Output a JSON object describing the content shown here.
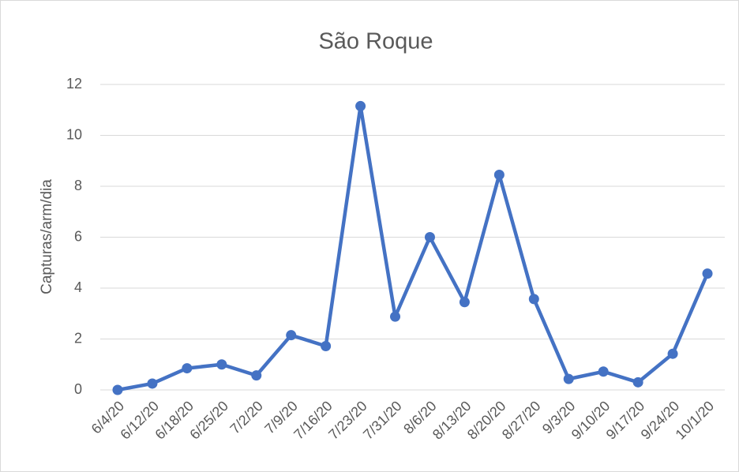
{
  "chart_data": {
    "type": "line",
    "title": "São Roque",
    "y_label": "Capturas/arm/dia",
    "categories": [
      "6/4/20",
      "6/12/20",
      "6/18/20",
      "6/25/20",
      "7/2/20",
      "7/9/20",
      "7/16/20",
      "7/23/20",
      "7/31/20",
      "8/6/20",
      "8/13/20",
      "8/20/20",
      "8/27/20",
      "9/3/20",
      "9/10/20",
      "9/17/20",
      "9/24/20",
      "10/1/20"
    ],
    "series": [
      {
        "name": "São Roque",
        "color": "#4472c4",
        "values": [
          0,
          0.25,
          0.85,
          1.0,
          0.57,
          2.15,
          1.72,
          11.15,
          2.88,
          6.0,
          3.45,
          8.45,
          3.57,
          0.43,
          0.72,
          0.3,
          1.42,
          4.57
        ]
      }
    ],
    "ylim": [
      0,
      12
    ],
    "yticks": [
      0,
      2,
      4,
      6,
      8,
      10,
      12
    ],
    "grid": true
  }
}
